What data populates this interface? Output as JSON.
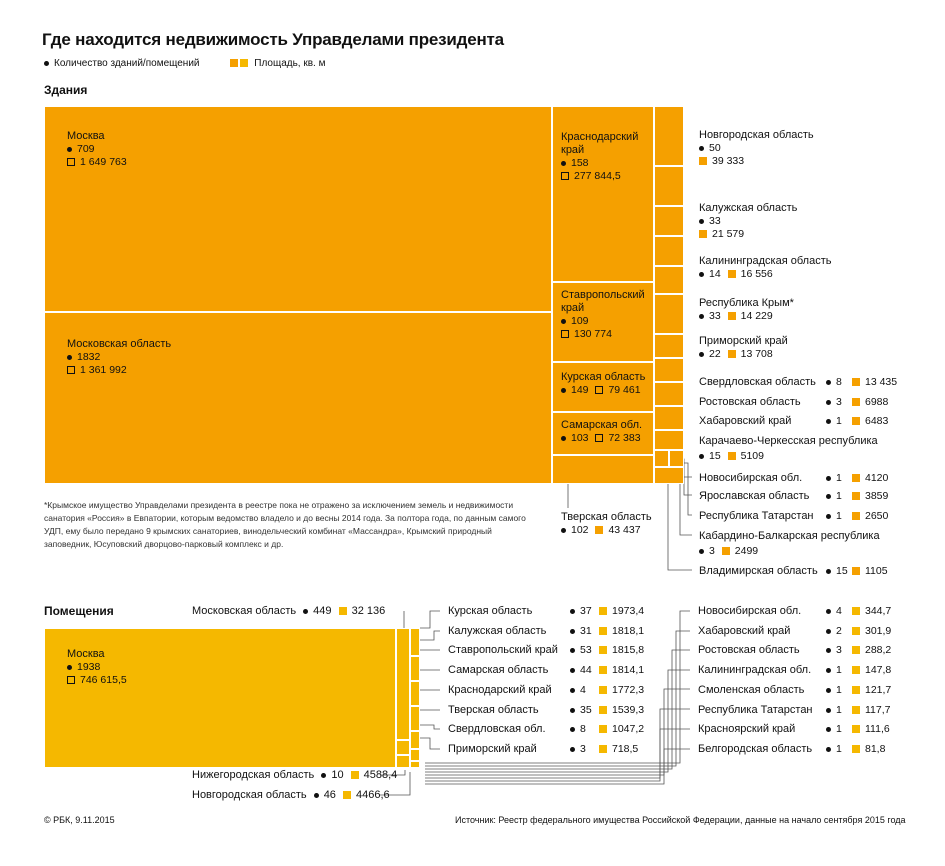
{
  "title": "Где находится недвижимость Управделами президента",
  "legend": {
    "count": "Количество зданий/помещений",
    "area": "Площадь, кв. м"
  },
  "sections": {
    "buildings": "Здания",
    "premises": "Помещения"
  },
  "footnote": "*Крымское имущество Управделами президента в реестре пока не отражено за исключением земель и недвижимости санатория «Россия» в Евпатории, которым ведомство владело и до весны 2014 года. За полтора года, по данным самого УДП, ему было передано 9 крымских санаториев, винодельческий комбинат «Массандра», Крымский природный заповедник, Юсуповский дворцово-парковый комплекс и др.",
  "footer": {
    "copyright": "© РБК, 9.11.2015",
    "source": "Источник: Реестр федерального имущества Российской Федерации, данные на начало сентября 2015 года"
  },
  "colors": {
    "buildings": "#F5A000",
    "premises": "#F5B800"
  },
  "chart_data": [
    {
      "type": "treemap",
      "title": "Здания",
      "series": [
        {
          "name": "Москва",
          "count": 709,
          "area": "1 649 763"
        },
        {
          "name": "Московская область",
          "count": 1832,
          "area": "1 361 992"
        },
        {
          "name": "Краснодарский край",
          "count": 158,
          "area": "277 844,5"
        },
        {
          "name": "Ставропольский край",
          "count": 109,
          "area": "130 774"
        },
        {
          "name": "Курская область",
          "count": 149,
          "area": "79 461"
        },
        {
          "name": "Самарская обл.",
          "count": 103,
          "area": "72 383"
        },
        {
          "name": "Тверская область",
          "count": 102,
          "area": "43 437"
        },
        {
          "name": "Новгородская область",
          "count": 50,
          "area": "39 333"
        },
        {
          "name": "Калужская область",
          "count": 33,
          "area": "21 579"
        },
        {
          "name": "Калининградская область",
          "count": 14,
          "area": "16 556"
        },
        {
          "name": "Республика Крым*",
          "count": 33,
          "area": "14 229"
        },
        {
          "name": "Приморский край",
          "count": 22,
          "area": "13 708"
        },
        {
          "name": "Свердловская область",
          "count": 8,
          "area": "13 435"
        },
        {
          "name": "Ростовская область",
          "count": 3,
          "area": "6988"
        },
        {
          "name": "Хабаровский край",
          "count": 1,
          "area": "6483"
        },
        {
          "name": "Карачаево-Черкесская республика",
          "count": 15,
          "area": "5109"
        },
        {
          "name": "Новосибирская обл.",
          "count": 1,
          "area": "4120"
        },
        {
          "name": "Ярославская область",
          "count": 1,
          "area": "3859"
        },
        {
          "name": "Республика Татарстан",
          "count": 1,
          "area": "2650"
        },
        {
          "name": "Кабардино-Балкарская республика",
          "count": 3,
          "area": "2499"
        },
        {
          "name": "Владимирская область",
          "count": 15,
          "area": "1105"
        }
      ]
    },
    {
      "type": "treemap",
      "title": "Помещения",
      "series": [
        {
          "name": "Москва",
          "count": 1938,
          "area": "746 615,5"
        },
        {
          "name": "Московская область",
          "count": 449,
          "area": "32 136"
        },
        {
          "name": "Курская область",
          "count": 37,
          "area": "1973,4"
        },
        {
          "name": "Калужская область",
          "count": 31,
          "area": "1818,1"
        },
        {
          "name": "Ставропольский край",
          "count": 53,
          "area": "1815,8"
        },
        {
          "name": "Самарская область",
          "count": 44,
          "area": "1814,1"
        },
        {
          "name": "Краснодарский край",
          "count": 4,
          "area": "1772,3"
        },
        {
          "name": "Тверская область",
          "count": 35,
          "area": "1539,3"
        },
        {
          "name": "Свердловская обл.",
          "count": 8,
          "area": "1047,2"
        },
        {
          "name": "Приморский край",
          "count": 3,
          "area": "718,5"
        },
        {
          "name": "Нижегородская область",
          "count": 10,
          "area": "4588,4"
        },
        {
          "name": "Новгородская область",
          "count": 46,
          "area": "4466,6"
        },
        {
          "name": "Новосибирская обл.",
          "count": 4,
          "area": "344,7"
        },
        {
          "name": "Хабаровский край",
          "count": 2,
          "area": "301,9"
        },
        {
          "name": "Ростовская область",
          "count": 3,
          "area": "288,2"
        },
        {
          "name": "Калининградская обл.",
          "count": 1,
          "area": "147,8"
        },
        {
          "name": "Смоленская область",
          "count": 1,
          "area": "121,7"
        },
        {
          "name": "Республика Татарстан",
          "count": 1,
          "area": "117,7"
        },
        {
          "name": "Красноярский край",
          "count": 1,
          "area": "111,6"
        },
        {
          "name": "Белгородская область",
          "count": 1,
          "area": "81,8"
        }
      ]
    }
  ]
}
